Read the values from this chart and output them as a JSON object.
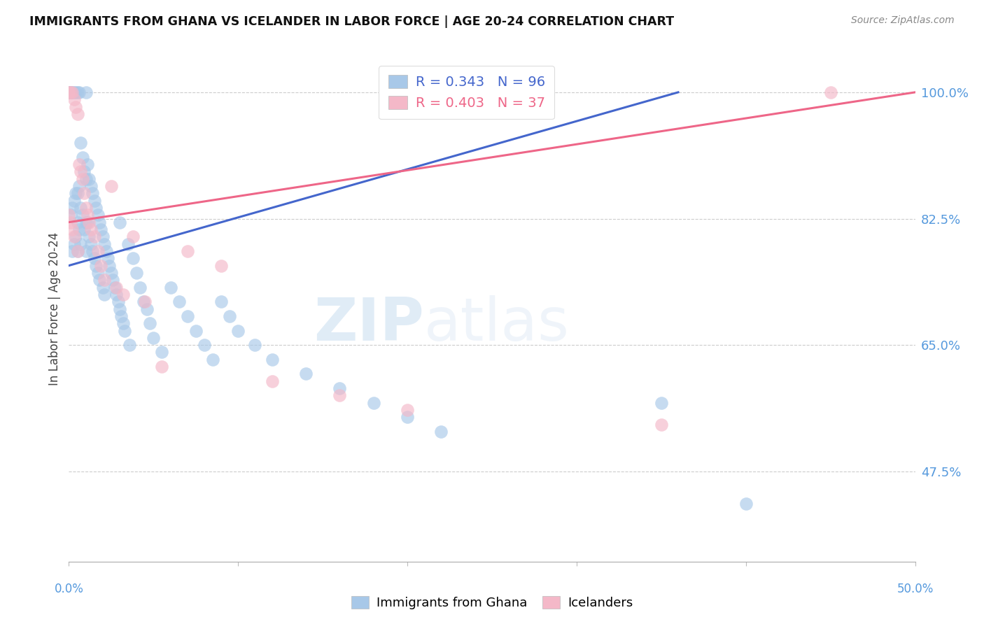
{
  "title": "IMMIGRANTS FROM GHANA VS ICELANDER IN LABOR FORCE | AGE 20-24 CORRELATION CHART",
  "source": "Source: ZipAtlas.com",
  "ylabel": "In Labor Force | Age 20-24",
  "yticks": [
    47.5,
    65.0,
    82.5,
    100.0
  ],
  "xmin": 0.0,
  "xmax": 0.5,
  "ymin": 35.0,
  "ymax": 105.0,
  "ghana_color": "#a8c8e8",
  "iceland_color": "#f4b8c8",
  "ghana_R": 0.343,
  "ghana_N": 96,
  "iceland_R": 0.403,
  "iceland_N": 37,
  "ghana_line_color": "#4466cc",
  "iceland_line_color": "#ee6688",
  "ghana_line_x0": 0.0,
  "ghana_line_y0": 76.0,
  "ghana_line_x1": 0.36,
  "ghana_line_y1": 100.0,
  "iceland_line_x0": 0.0,
  "iceland_line_y0": 82.0,
  "iceland_line_x1": 0.5,
  "iceland_line_y1": 100.0,
  "watermark_zip": "ZIP",
  "watermark_atlas": "atlas",
  "scatter_size": 180,
  "scatter_alpha": 0.65,
  "ghana_scatter_x": [
    0.0,
    0.0,
    0.0,
    0.001,
    0.001,
    0.001,
    0.001,
    0.002,
    0.002,
    0.002,
    0.003,
    0.003,
    0.003,
    0.004,
    0.004,
    0.004,
    0.005,
    0.005,
    0.005,
    0.005,
    0.006,
    0.006,
    0.006,
    0.007,
    0.007,
    0.007,
    0.008,
    0.008,
    0.009,
    0.009,
    0.01,
    0.01,
    0.01,
    0.01,
    0.011,
    0.011,
    0.012,
    0.012,
    0.013,
    0.013,
    0.014,
    0.014,
    0.015,
    0.015,
    0.016,
    0.016,
    0.017,
    0.017,
    0.018,
    0.018,
    0.019,
    0.02,
    0.02,
    0.021,
    0.021,
    0.022,
    0.023,
    0.024,
    0.025,
    0.026,
    0.027,
    0.028,
    0.029,
    0.03,
    0.03,
    0.031,
    0.032,
    0.033,
    0.035,
    0.036,
    0.038,
    0.04,
    0.042,
    0.044,
    0.046,
    0.048,
    0.05,
    0.055,
    0.06,
    0.065,
    0.07,
    0.075,
    0.08,
    0.085,
    0.09,
    0.095,
    0.1,
    0.11,
    0.12,
    0.14,
    0.16,
    0.18,
    0.2,
    0.22,
    0.35,
    0.4
  ],
  "ghana_scatter_y": [
    100.0,
    100.0,
    100.0,
    100.0,
    100.0,
    100.0,
    83.0,
    100.0,
    84.0,
    78.0,
    100.0,
    85.0,
    79.0,
    100.0,
    86.0,
    80.0,
    100.0,
    86.0,
    82.0,
    78.0,
    100.0,
    87.0,
    81.0,
    93.0,
    84.0,
    79.0,
    91.0,
    83.0,
    89.0,
    81.0,
    100.0,
    88.0,
    82.0,
    78.0,
    90.0,
    82.0,
    88.0,
    80.0,
    87.0,
    79.0,
    86.0,
    78.0,
    85.0,
    77.0,
    84.0,
    76.0,
    83.0,
    75.0,
    82.0,
    74.0,
    81.0,
    80.0,
    73.0,
    79.0,
    72.0,
    78.0,
    77.0,
    76.0,
    75.0,
    74.0,
    73.0,
    72.0,
    71.0,
    82.0,
    70.0,
    69.0,
    68.0,
    67.0,
    79.0,
    65.0,
    77.0,
    75.0,
    73.0,
    71.0,
    70.0,
    68.0,
    66.0,
    64.0,
    73.0,
    71.0,
    69.0,
    67.0,
    65.0,
    63.0,
    71.0,
    69.0,
    67.0,
    65.0,
    63.0,
    61.0,
    59.0,
    57.0,
    55.0,
    53.0,
    57.0,
    43.0
  ],
  "iceland_scatter_x": [
    0.0,
    0.0,
    0.0,
    0.001,
    0.001,
    0.002,
    0.002,
    0.003,
    0.003,
    0.004,
    0.005,
    0.005,
    0.006,
    0.007,
    0.008,
    0.009,
    0.01,
    0.011,
    0.012,
    0.013,
    0.015,
    0.017,
    0.019,
    0.021,
    0.025,
    0.028,
    0.032,
    0.038,
    0.045,
    0.055,
    0.07,
    0.09,
    0.12,
    0.16,
    0.2,
    0.35,
    0.45
  ],
  "iceland_scatter_y": [
    100.0,
    100.0,
    83.0,
    100.0,
    82.0,
    100.0,
    81.0,
    99.0,
    80.0,
    98.0,
    97.0,
    78.0,
    90.0,
    89.0,
    88.0,
    86.0,
    84.0,
    83.0,
    82.0,
    81.0,
    80.0,
    78.0,
    76.0,
    74.0,
    87.0,
    73.0,
    72.0,
    80.0,
    71.0,
    62.0,
    78.0,
    76.0,
    60.0,
    58.0,
    56.0,
    54.0,
    100.0
  ]
}
